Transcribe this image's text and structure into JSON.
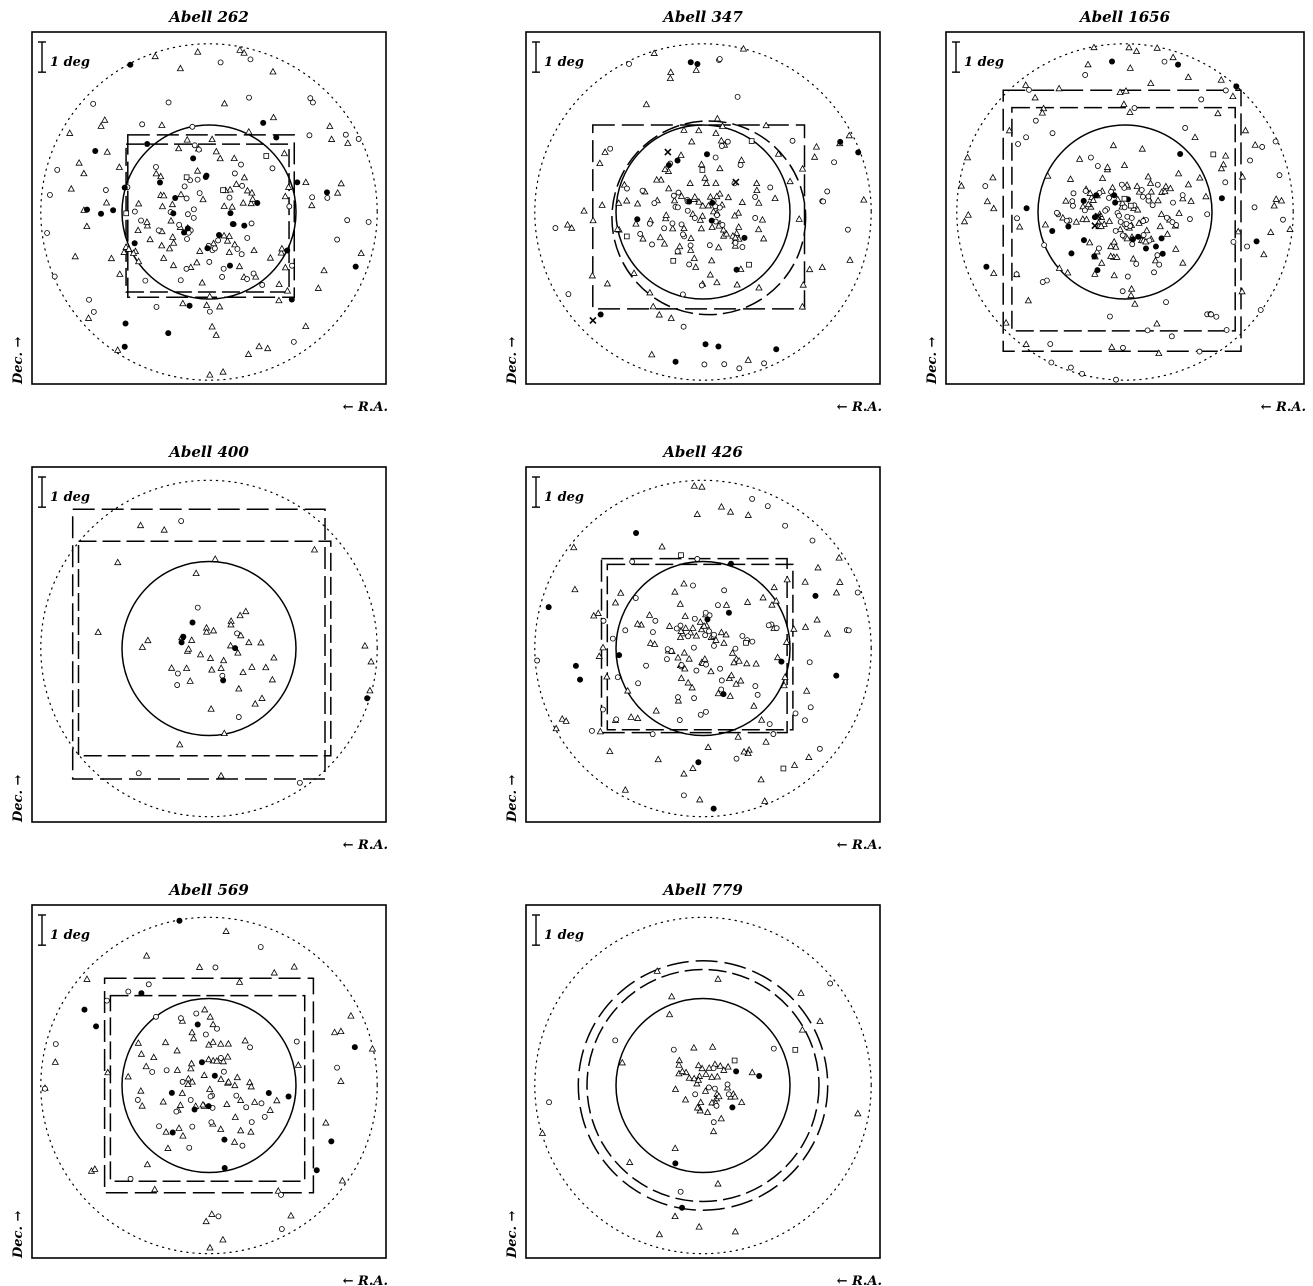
{
  "figure": {
    "scale_label": "1 deg",
    "xlabel": "← R.A.",
    "ylabel": "Dec. →"
  },
  "chart_data": [
    {
      "type": "scatter",
      "title": "Abell 262",
      "xlabel": "← R.A.",
      "ylabel": "Dec. →",
      "scale_bar": "1 deg",
      "outer_circle": {
        "cx": 0,
        "cy": 0,
        "r": 2.9,
        "style": "dotted"
      },
      "inner_circle": {
        "cx": 0,
        "cy": 0,
        "r": 1.5,
        "style": "solid"
      },
      "dashed_regions": [
        {
          "shape": "rect",
          "x0": -1.4,
          "y0": -1.47,
          "x1": 1.47,
          "y1": 1.33
        },
        {
          "shape": "rect",
          "x0": -1.43,
          "y0": -1.38,
          "x1": 1.38,
          "y1": 1.17
        }
      ],
      "seed": 11,
      "concentration": 0.85,
      "counts": {
        "triangle": 120,
        "open_circle": 72,
        "filled_circle": 34,
        "square": 4
      }
    },
    {
      "type": "scatter",
      "title": "Abell 347",
      "xlabel": "← R.A.",
      "ylabel": "Dec. →",
      "scale_bar": "1 deg",
      "outer_circle": {
        "cx": 0,
        "cy": 0,
        "r": 2.9,
        "style": "dotted"
      },
      "inner_circle": {
        "cx": 0,
        "cy": 0,
        "r": 1.5,
        "style": "solid"
      },
      "dashed_regions": [
        {
          "shape": "rect",
          "x0": -1.9,
          "y0": -1.67,
          "x1": 1.75,
          "y1": 1.5
        },
        {
          "shape": "circle",
          "cx": 0.1,
          "cy": -0.1,
          "r": 1.67
        }
      ],
      "seed": 23,
      "concentration": 0.7,
      "counts": {
        "triangle": 130,
        "open_circle": 60,
        "filled_circle": 18,
        "square": 5,
        "cross": 3
      }
    },
    {
      "type": "scatter",
      "title": "Abell 1656",
      "xlabel": "← R.A.",
      "ylabel": "Dec. →",
      "scale_bar": "1 deg",
      "outer_circle": {
        "cx": 0,
        "cy": 0,
        "r": 2.9,
        "style": "dotted"
      },
      "inner_circle": {
        "cx": 0,
        "cy": 0,
        "r": 1.5,
        "style": "solid"
      },
      "dashed_regions": [
        {
          "shape": "rect",
          "x0": -2.1,
          "y0": -2.4,
          "x1": 2.0,
          "y1": 2.1
        },
        {
          "shape": "rect",
          "x0": -1.95,
          "y0": -2.05,
          "x1": 1.9,
          "y1": 1.8
        }
      ],
      "seed": 37,
      "concentration": 0.55,
      "counts": {
        "triangle": 150,
        "open_circle": 100,
        "filled_circle": 26,
        "square": 3,
        "cross": 2
      }
    },
    {
      "type": "scatter",
      "title": "Abell 400",
      "xlabel": "← R.A.",
      "ylabel": "Dec. →",
      "scale_bar": "1 deg",
      "outer_circle": {
        "cx": 0,
        "cy": 0,
        "r": 2.9,
        "style": "dotted"
      },
      "inner_circle": {
        "cx": 0,
        "cy": 0,
        "r": 1.5,
        "style": "solid"
      },
      "dashed_regions": [
        {
          "shape": "rect",
          "x0": -2.35,
          "y0": -2.25,
          "x1": 2.0,
          "y1": 2.4
        },
        {
          "shape": "rect",
          "x0": -2.25,
          "y0": -1.85,
          "x1": 2.1,
          "y1": 1.85
        }
      ],
      "seed": 41,
      "concentration": 0.45,
      "counts": {
        "triangle": 48,
        "open_circle": 9,
        "filled_circle": 6
      }
    },
    {
      "type": "scatter",
      "title": "Abell 426",
      "xlabel": "← R.A.",
      "ylabel": "Dec. →",
      "scale_bar": "1 deg",
      "outer_circle": {
        "cx": 0,
        "cy": 0,
        "r": 2.9,
        "style": "dotted"
      },
      "inner_circle": {
        "cx": 0,
        "cy": 0,
        "r": 1.5,
        "style": "solid"
      },
      "dashed_regions": [
        {
          "shape": "rect",
          "x0": -1.75,
          "y0": -1.45,
          "x1": 1.45,
          "y1": 1.55
        },
        {
          "shape": "rect",
          "x0": -1.65,
          "y0": -1.4,
          "x1": 1.55,
          "y1": 1.45
        }
      ],
      "seed": 53,
      "concentration": 0.75,
      "counts": {
        "triangle": 120,
        "open_circle": 70,
        "filled_circle": 14,
        "square": 3
      }
    },
    {
      "type": "scatter",
      "title": "Abell 569",
      "xlabel": "← R.A.",
      "ylabel": "Dec. →",
      "scale_bar": "1 deg",
      "outer_circle": {
        "cx": 0,
        "cy": 0,
        "r": 2.9,
        "style": "dotted"
      },
      "inner_circle": {
        "cx": 0,
        "cy": 0,
        "r": 1.5,
        "style": "solid"
      },
      "dashed_regions": [
        {
          "shape": "rect",
          "x0": -1.8,
          "y0": -1.85,
          "x1": 1.8,
          "y1": 1.85
        },
        {
          "shape": "rect",
          "x0": -1.7,
          "y0": -1.65,
          "x1": 1.65,
          "y1": 1.55
        }
      ],
      "seed": 67,
      "concentration": 0.6,
      "counts": {
        "triangle": 90,
        "open_circle": 40,
        "filled_circle": 18
      }
    },
    {
      "type": "scatter",
      "title": "Abell 779",
      "xlabel": "← R.A.",
      "ylabel": "Dec. →",
      "scale_bar": "1 deg",
      "outer_circle": {
        "cx": 0,
        "cy": 0,
        "r": 2.9,
        "style": "dotted"
      },
      "inner_circle": {
        "cx": 0,
        "cy": 0,
        "r": 1.5,
        "style": "solid"
      },
      "dashed_regions": [
        {
          "shape": "circle",
          "cx": 0,
          "cy": 0,
          "r": 2.15
        },
        {
          "shape": "circle",
          "cx": 0,
          "cy": 0,
          "r": 2.0
        }
      ],
      "seed": 79,
      "concentration": 0.4,
      "counts": {
        "triangle": 60,
        "open_circle": 14,
        "filled_circle": 5,
        "square": 2
      }
    }
  ]
}
